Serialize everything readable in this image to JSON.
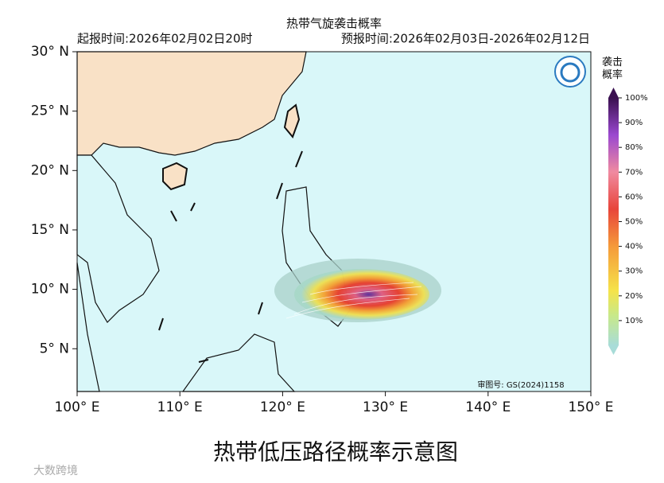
{
  "header": {
    "title": "热带气旋袭击概率",
    "issue_time": "起报时间:2026年02月02日20时",
    "forecast_time": "预报时间:2026年02月03日-2026年02月12日"
  },
  "map": {
    "lonlim": [
      100,
      150
    ],
    "latlim": [
      30,
      1.4
    ],
    "lonticks": [
      {
        "value": 100,
        "label": "100° E"
      },
      {
        "value": 110,
        "label": "110° E"
      },
      {
        "value": 120,
        "label": "120° E"
      },
      {
        "value": 130,
        "label": "130° E"
      },
      {
        "value": 140,
        "label": "140° E"
      },
      {
        "value": 150,
        "label": "150° E"
      }
    ],
    "latticks": [
      {
        "value": 5,
        "label": "5° N"
      },
      {
        "value": 10,
        "label": "10° N"
      },
      {
        "value": 15,
        "label": "15° N"
      },
      {
        "value": 20,
        "label": "20° N"
      },
      {
        "value": 25,
        "label": "25° N"
      },
      {
        "value": 30,
        "label": "30° N"
      }
    ],
    "approval": "审图号: GS(2024)1158"
  },
  "colorbar": {
    "title": "袭击\n概率",
    "lim": [
      0,
      100
    ],
    "ticks": [
      {
        "value": 10,
        "label": "10%"
      },
      {
        "value": 20,
        "label": "20%"
      },
      {
        "value": 30,
        "label": "30%"
      },
      {
        "value": 40,
        "label": "40%"
      },
      {
        "value": 50,
        "label": "50%"
      },
      {
        "value": 60,
        "label": "60%"
      },
      {
        "value": 70,
        "label": "70%"
      },
      {
        "value": 80,
        "label": "80%"
      },
      {
        "value": 90,
        "label": "90%"
      },
      {
        "value": 100,
        "label": "100%"
      }
    ]
  },
  "caption": "热带低压路径概率示意图",
  "watermark": "大数跨境"
}
